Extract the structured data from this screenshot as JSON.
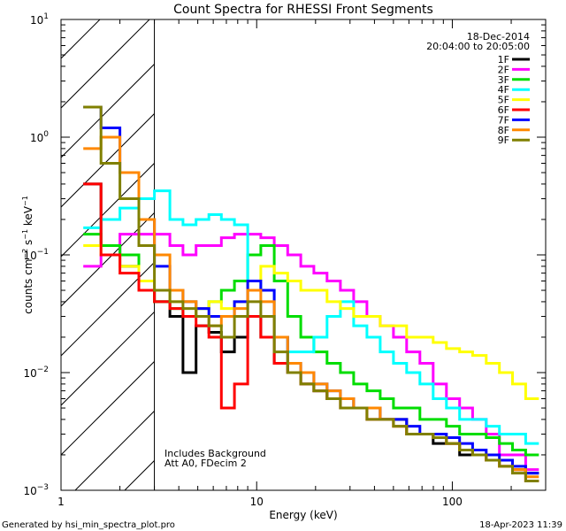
{
  "chart_data": {
    "type": "line",
    "title": "Count Spectra for RHESSI Front Segments",
    "xlabel": "Energy (keV)",
    "ylabel": {
      "base": "counts cm",
      "exp1": "−2",
      "mid1": " s",
      "exp2": "−1",
      "mid2": " keV",
      "exp3": "−1"
    },
    "x_scale": "log",
    "y_scale": "log",
    "xlim": [
      1,
      300
    ],
    "ylim": [
      0.001,
      10
    ],
    "x_ticks": [
      {
        "value": 1,
        "label": "1"
      },
      {
        "value": 10,
        "label": "10"
      },
      {
        "value": 100,
        "label": "100"
      }
    ],
    "y_ticks": [
      {
        "value": 0.001,
        "base": "10",
        "exp": "−3"
      },
      {
        "value": 0.01,
        "base": "10",
        "exp": "−2"
      },
      {
        "value": 0.1,
        "base": "10",
        "exp": "−1"
      },
      {
        "value": 1,
        "base": "10",
        "exp": "0"
      },
      {
        "value": 10,
        "base": "10",
        "exp": "1"
      }
    ],
    "hatched_region": {
      "x_start": 1,
      "x_end": 3
    },
    "legend_header": [
      "18-Dec-2014",
      "20:04:00 to 20:05:00"
    ],
    "legend_placement": "top-right",
    "annotations": [
      "Includes Background",
      "Att A0, FDecim 2"
    ],
    "bin_edges": [
      1.3,
      1.6,
      2.0,
      2.5,
      3.0,
      3.6,
      4.2,
      4.9,
      5.7,
      6.6,
      7.7,
      9.0,
      10.5,
      12.3,
      14.4,
      16.8,
      19.6,
      22.9,
      26.8,
      31.3,
      36.6,
      42.8,
      50,
      58.4,
      68.3,
      79.8,
      93.3,
      109,
      127,
      149,
      174,
      203,
      237,
      277
    ],
    "series": [
      {
        "name": "1F",
        "color": "#000000",
        "values": [
          0.4,
          0.12,
          0.08,
          0.05,
          0.04,
          0.03,
          0.01,
          0.025,
          0.022,
          0.015,
          0.02,
          0.03,
          0.02,
          0.012,
          0.01,
          0.008,
          0.007,
          0.006,
          0.006,
          0.005,
          0.005,
          0.004,
          0.004,
          0.003,
          0.003,
          0.0025,
          0.0025,
          0.002,
          0.002,
          0.0018,
          0.0018,
          0.0015,
          0.0014
        ]
      },
      {
        "name": "2F",
        "color": "#ff00ff",
        "values": [
          0.08,
          0.1,
          0.15,
          0.15,
          0.15,
          0.12,
          0.1,
          0.12,
          0.12,
          0.14,
          0.15,
          0.15,
          0.14,
          0.12,
          0.1,
          0.08,
          0.07,
          0.06,
          0.05,
          0.04,
          0.03,
          0.025,
          0.02,
          0.015,
          0.012,
          0.008,
          0.006,
          0.005,
          0.004,
          0.003,
          0.002,
          0.002,
          0.0015
        ]
      },
      {
        "name": "3F",
        "color": "#00dd00",
        "values": [
          0.15,
          0.12,
          0.1,
          0.05,
          0.04,
          0.035,
          0.03,
          0.035,
          0.04,
          0.05,
          0.06,
          0.1,
          0.12,
          0.06,
          0.03,
          0.02,
          0.015,
          0.012,
          0.01,
          0.008,
          0.007,
          0.006,
          0.005,
          0.005,
          0.004,
          0.004,
          0.0035,
          0.003,
          0.003,
          0.0028,
          0.0025,
          0.0022,
          0.002
        ]
      },
      {
        "name": "4F",
        "color": "#00ffff",
        "values": [
          0.17,
          0.2,
          0.25,
          0.3,
          0.35,
          0.2,
          0.18,
          0.2,
          0.22,
          0.2,
          0.18,
          0.06,
          0.05,
          0.02,
          0.015,
          0.015,
          0.02,
          0.03,
          0.04,
          0.025,
          0.02,
          0.015,
          0.012,
          0.01,
          0.008,
          0.006,
          0.005,
          0.004,
          0.004,
          0.0035,
          0.003,
          0.003,
          0.0025
        ]
      },
      {
        "name": "5F",
        "color": "#ffff00",
        "values": [
          0.12,
          0.1,
          0.08,
          0.06,
          0.05,
          0.04,
          0.04,
          0.035,
          0.04,
          0.035,
          0.04,
          0.06,
          0.08,
          0.07,
          0.06,
          0.05,
          0.05,
          0.04,
          0.035,
          0.03,
          0.03,
          0.025,
          0.025,
          0.02,
          0.02,
          0.018,
          0.016,
          0.015,
          0.014,
          0.012,
          0.01,
          0.008,
          0.006
        ]
      },
      {
        "name": "6F",
        "color": "#ff0000",
        "values": [
          0.4,
          0.1,
          0.07,
          0.05,
          0.04,
          0.035,
          0.03,
          0.025,
          0.02,
          0.005,
          0.008,
          0.03,
          0.02,
          0.012,
          0.01,
          0.008,
          0.007,
          0.006,
          0.005,
          0.005,
          0.004,
          0.004,
          0.0035,
          0.003,
          0.003,
          0.0028,
          0.0025,
          0.0022,
          0.002,
          0.0018,
          0.0016,
          0.0015,
          0.0012
        ]
      },
      {
        "name": "7F",
        "color": "#0000ff",
        "values": [
          1.8,
          1.2,
          0.5,
          0.2,
          0.08,
          0.05,
          0.04,
          0.035,
          0.03,
          0.03,
          0.04,
          0.06,
          0.05,
          0.02,
          0.012,
          0.01,
          0.008,
          0.007,
          0.006,
          0.005,
          0.005,
          0.004,
          0.004,
          0.0035,
          0.003,
          0.003,
          0.0028,
          0.0025,
          0.0022,
          0.002,
          0.0018,
          0.0016,
          0.0014
        ]
      },
      {
        "name": "8F",
        "color": "#ff8800",
        "values": [
          0.8,
          1.0,
          0.5,
          0.2,
          0.1,
          0.05,
          0.04,
          0.03,
          0.025,
          0.03,
          0.035,
          0.05,
          0.04,
          0.02,
          0.012,
          0.01,
          0.008,
          0.007,
          0.006,
          0.005,
          0.005,
          0.004,
          0.0035,
          0.003,
          0.003,
          0.0028,
          0.0025,
          0.0022,
          0.002,
          0.0018,
          0.0016,
          0.0015,
          0.0013
        ]
      },
      {
        "name": "9F",
        "color": "#808000",
        "values": [
          1.8,
          0.6,
          0.3,
          0.12,
          0.05,
          0.04,
          0.035,
          0.03,
          0.025,
          0.02,
          0.03,
          0.04,
          0.03,
          0.015,
          0.01,
          0.008,
          0.007,
          0.006,
          0.005,
          0.005,
          0.004,
          0.004,
          0.0035,
          0.003,
          0.003,
          0.0028,
          0.0025,
          0.0022,
          0.002,
          0.0018,
          0.0016,
          0.0014,
          0.0012
        ]
      }
    ]
  },
  "footer": {
    "left": "Generated by hsi_min_spectra_plot.pro",
    "right": "18-Apr-2023 11:39"
  }
}
